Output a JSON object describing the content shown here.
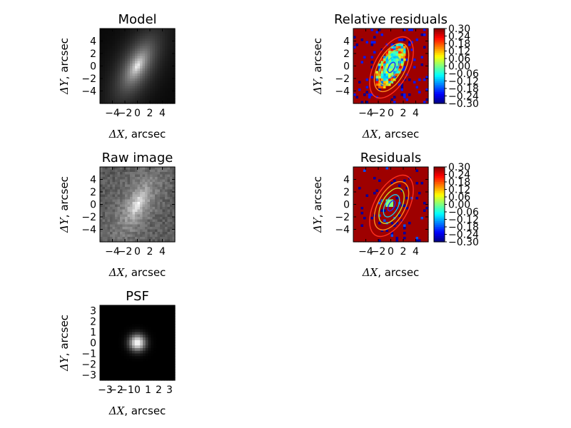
{
  "panels": [
    {
      "id": "model",
      "title": "Model",
      "kind": "galaxy-smooth",
      "xticks": [
        "−4",
        "−2",
        "0",
        "2",
        "4"
      ],
      "yticks": [
        "−4",
        "−2",
        "0",
        "2",
        "4"
      ],
      "xlabel": {
        "sym": "ΔX",
        "unit": ", arcsec"
      },
      "ylabel": {
        "sym": "ΔY",
        "unit": ", arcsec"
      }
    },
    {
      "id": "relative-residuals",
      "title": "Relative residuals",
      "kind": "rel-residuals",
      "xticks": [
        "−4",
        "−2",
        "0",
        "2",
        "4"
      ],
      "yticks": [
        "−4",
        "−2",
        "0",
        "2",
        "4"
      ],
      "xlabel": {
        "sym": "ΔX",
        "unit": ", arcsec"
      },
      "ylabel": {
        "sym": "ΔY",
        "unit": ", arcsec"
      },
      "colorbar": [
        "0.30",
        "0.24",
        "0.18",
        "0.12",
        "0.06",
        "0.00",
        "−0.06",
        "−0.12",
        "−0.18",
        "−0.24",
        "−0.30"
      ]
    },
    {
      "id": "raw-image",
      "title": "Raw image",
      "kind": "galaxy-noisy",
      "xticks": [
        "−4",
        "−2",
        "0",
        "2",
        "4"
      ],
      "yticks": [
        "−4",
        "−2",
        "0",
        "2",
        "4"
      ],
      "xlabel": {
        "sym": "ΔX",
        "unit": ", arcsec"
      },
      "ylabel": {
        "sym": "ΔY",
        "unit": ", arcsec"
      }
    },
    {
      "id": "residuals",
      "title": "Residuals",
      "kind": "residuals",
      "xticks": [
        "−4",
        "−2",
        "0",
        "2",
        "4"
      ],
      "yticks": [
        "−4",
        "−2",
        "0",
        "2",
        "4"
      ],
      "xlabel": {
        "sym": "ΔX",
        "unit": ", arcsec"
      },
      "ylabel": {
        "sym": "ΔY",
        "unit": ", arcsec"
      },
      "colorbar": [
        "0.30",
        "0.24",
        "0.18",
        "0.12",
        "0.06",
        "0.00",
        "−0.06",
        "−0.12",
        "−0.18",
        "−0.24",
        "−0.30"
      ]
    },
    {
      "id": "psf",
      "title": "PSF",
      "kind": "psf",
      "xticks": [
        "−3",
        "−2",
        "−1",
        "0",
        "1",
        "2",
        "3"
      ],
      "yticks": [
        "−3",
        "−2",
        "−1",
        "0",
        "1",
        "2",
        "3"
      ],
      "xlabel": {
        "sym": "ΔX",
        "unit": ", arcsec"
      },
      "ylabel": {
        "sym": "ΔY",
        "unit": ", arcsec"
      }
    }
  ],
  "chart_data": [
    {
      "type": "heatmap",
      "title": "Model",
      "xlabel": "ΔX, arcsec",
      "ylabel": "ΔY, arcsec",
      "xlim": [
        -6,
        6
      ],
      "ylim": [
        -6,
        6
      ],
      "colormap": "gray",
      "content": "smooth elongated galaxy model, brightest at center, major axis tilted toward upper-right"
    },
    {
      "type": "heatmap",
      "title": "Relative residuals",
      "xlabel": "ΔX, arcsec",
      "ylabel": "ΔY, arcsec",
      "xlim": [
        -6,
        6
      ],
      "ylim": [
        -6,
        6
      ],
      "colormap": "jet",
      "colorbar_range": [
        -0.3,
        0.3
      ],
      "contours": true
    },
    {
      "type": "heatmap",
      "title": "Raw image",
      "xlabel": "ΔX, arcsec",
      "ylabel": "ΔY, arcsec",
      "xlim": [
        -6,
        6
      ],
      "ylim": [
        -6,
        6
      ],
      "colormap": "gray"
    },
    {
      "type": "heatmap",
      "title": "Residuals",
      "xlabel": "ΔX, arcsec",
      "ylabel": "ΔY, arcsec",
      "xlim": [
        -6,
        6
      ],
      "ylim": [
        -6,
        6
      ],
      "colormap": "jet",
      "colorbar_range": [
        -0.3,
        0.3
      ],
      "contours": true
    },
    {
      "type": "heatmap",
      "title": "PSF",
      "xlabel": "ΔX, arcsec",
      "ylabel": "ΔY, arcsec",
      "xlim": [
        -3.5,
        3.5
      ],
      "ylim": [
        -3.5,
        3.5
      ],
      "colormap": "gray"
    }
  ]
}
